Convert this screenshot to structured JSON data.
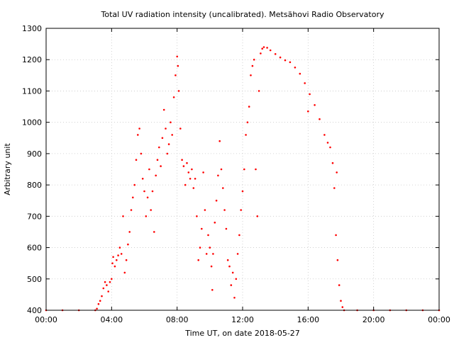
{
  "chart_data": {
    "type": "scatter",
    "title": "Total UV radiation intensity (uncalibrated). Metsähovi Radio Observatory",
    "xlabel": "Time UT, on date 2018-05-27",
    "ylabel": "Arbitrary unit",
    "xlim": [
      0,
      24
    ],
    "ylim": [
      400,
      1300
    ],
    "x_tick_labels": [
      "00:00",
      "04:00",
      "08:00",
      "12:00",
      "16:00",
      "20:00",
      "00:00"
    ],
    "y_tick_labels": [
      "400",
      "500",
      "600",
      "700",
      "800",
      "900",
      "1000",
      "1100",
      "1200",
      "1300"
    ],
    "grid": true,
    "marker_color": "#ff0000",
    "series": [
      {
        "x_unit": "hours UT",
        "points": [
          [
            0.0,
            400
          ],
          [
            1.0,
            400
          ],
          [
            2.0,
            400
          ],
          [
            3.0,
            400
          ],
          [
            3.1,
            405
          ],
          [
            3.2,
            420
          ],
          [
            3.3,
            430
          ],
          [
            3.4,
            445
          ],
          [
            3.5,
            470
          ],
          [
            3.6,
            490
          ],
          [
            3.7,
            480
          ],
          [
            3.8,
            460
          ],
          [
            3.9,
            490
          ],
          [
            4.0,
            500
          ],
          [
            4.05,
            550
          ],
          [
            4.1,
            570
          ],
          [
            4.2,
            540
          ],
          [
            4.3,
            560
          ],
          [
            4.4,
            575
          ],
          [
            4.5,
            600
          ],
          [
            4.6,
            580
          ],
          [
            4.7,
            700
          ],
          [
            4.8,
            520
          ],
          [
            4.9,
            560
          ],
          [
            5.0,
            610
          ],
          [
            5.1,
            650
          ],
          [
            5.2,
            720
          ],
          [
            5.3,
            760
          ],
          [
            5.4,
            800
          ],
          [
            5.5,
            880
          ],
          [
            5.6,
            960
          ],
          [
            5.7,
            980
          ],
          [
            5.8,
            900
          ],
          [
            5.9,
            820
          ],
          [
            6.0,
            780
          ],
          [
            6.1,
            700
          ],
          [
            6.2,
            760
          ],
          [
            6.3,
            850
          ],
          [
            6.4,
            720
          ],
          [
            6.5,
            780
          ],
          [
            6.6,
            650
          ],
          [
            6.7,
            830
          ],
          [
            6.8,
            880
          ],
          [
            6.9,
            920
          ],
          [
            7.0,
            860
          ],
          [
            7.1,
            950
          ],
          [
            7.2,
            1040
          ],
          [
            7.3,
            980
          ],
          [
            7.4,
            900
          ],
          [
            7.5,
            930
          ],
          [
            7.6,
            1000
          ],
          [
            7.7,
            960
          ],
          [
            7.8,
            1080
          ],
          [
            7.9,
            1150
          ],
          [
            8.0,
            1210
          ],
          [
            8.05,
            1180
          ],
          [
            8.1,
            1100
          ],
          [
            8.2,
            980
          ],
          [
            8.3,
            880
          ],
          [
            8.4,
            860
          ],
          [
            8.5,
            800
          ],
          [
            8.6,
            870
          ],
          [
            8.7,
            840
          ],
          [
            8.8,
            820
          ],
          [
            8.9,
            850
          ],
          [
            9.0,
            790
          ],
          [
            9.1,
            820
          ],
          [
            9.2,
            700
          ],
          [
            9.3,
            560
          ],
          [
            9.4,
            600
          ],
          [
            9.5,
            660
          ],
          [
            9.6,
            840
          ],
          [
            9.7,
            720
          ],
          [
            9.8,
            580
          ],
          [
            9.9,
            640
          ],
          [
            10.0,
            600
          ],
          [
            10.1,
            540
          ],
          [
            10.15,
            465
          ],
          [
            10.2,
            580
          ],
          [
            10.3,
            680
          ],
          [
            10.4,
            750
          ],
          [
            10.5,
            830
          ],
          [
            10.6,
            940
          ],
          [
            10.7,
            850
          ],
          [
            10.8,
            790
          ],
          [
            10.9,
            720
          ],
          [
            11.0,
            660
          ],
          [
            11.1,
            560
          ],
          [
            11.2,
            540
          ],
          [
            11.3,
            480
          ],
          [
            11.4,
            520
          ],
          [
            11.5,
            440
          ],
          [
            11.6,
            500
          ],
          [
            11.7,
            580
          ],
          [
            11.8,
            640
          ],
          [
            11.9,
            720
          ],
          [
            12.0,
            780
          ],
          [
            12.1,
            850
          ],
          [
            12.2,
            960
          ],
          [
            12.3,
            1000
          ],
          [
            12.4,
            1050
          ],
          [
            12.5,
            1150
          ],
          [
            12.6,
            1180
          ],
          [
            12.7,
            1200
          ],
          [
            12.8,
            850
          ],
          [
            12.9,
            700
          ],
          [
            13.0,
            1100
          ],
          [
            13.1,
            1220
          ],
          [
            13.2,
            1235
          ],
          [
            13.3,
            1240
          ],
          [
            13.5,
            1238
          ],
          [
            13.7,
            1230
          ],
          [
            14.0,
            1218
          ],
          [
            14.3,
            1207
          ],
          [
            14.6,
            1198
          ],
          [
            14.9,
            1192
          ],
          [
            15.2,
            1175
          ],
          [
            15.5,
            1155
          ],
          [
            15.8,
            1125
          ],
          [
            16.0,
            1035
          ],
          [
            16.1,
            1090
          ],
          [
            16.4,
            1055
          ],
          [
            16.7,
            1010
          ],
          [
            17.0,
            960
          ],
          [
            17.2,
            935
          ],
          [
            17.35,
            920
          ],
          [
            17.5,
            870
          ],
          [
            17.6,
            790
          ],
          [
            17.7,
            640
          ],
          [
            17.75,
            840
          ],
          [
            17.8,
            560
          ],
          [
            17.9,
            480
          ],
          [
            18.0,
            430
          ],
          [
            18.1,
            410
          ],
          [
            18.2,
            400
          ],
          [
            19.0,
            400
          ],
          [
            20.0,
            400
          ],
          [
            21.0,
            400
          ],
          [
            22.0,
            400
          ],
          [
            23.0,
            400
          ],
          [
            24.0,
            400
          ]
        ]
      }
    ]
  }
}
